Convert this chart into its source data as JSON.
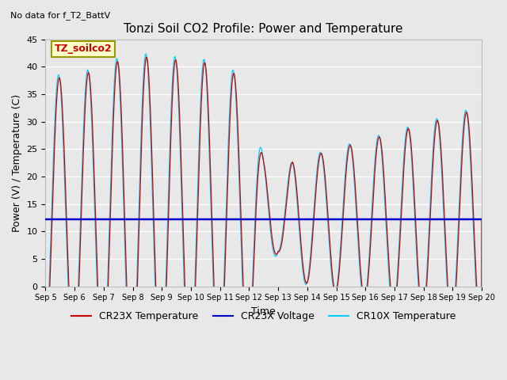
{
  "title": "Tonzi Soil CO2 Profile: Power and Temperature",
  "subtitle": "No data for f_T2_BattV",
  "ylabel": "Power (V) / Temperature (C)",
  "xlabel": "Time",
  "ylim": [
    0,
    45
  ],
  "yticks": [
    0,
    5,
    10,
    15,
    20,
    25,
    30,
    35,
    40,
    45
  ],
  "xtick_labels": [
    "Sep 5",
    "Sep 6",
    "Sep 7",
    "Sep 8",
    "Sep 9",
    "Sep 10",
    "Sep 11",
    "Sep 12",
    "Sep 13",
    "Sep 14",
    "Sep 15",
    "Sep 16",
    "Sep 17",
    "Sep 18",
    "Sep 19",
    "Sep 20"
  ],
  "cr23x_color": "#cc0000",
  "cr10x_color": "#00ccff",
  "voltage_color": "#0000cc",
  "bg_color": "#e8e8e8",
  "fig_color": "#e8e8e8",
  "legend_label_box": "TZ_soilco2",
  "legend_box_color": "#ffffcc",
  "legend_box_edge": "#999900",
  "grid_color": "#ffffff",
  "voltage_value": 12.2,
  "title_fontsize": 11,
  "subtitle_fontsize": 8,
  "ylabel_fontsize": 9,
  "xlabel_fontsize": 9,
  "tick_fontsize": 8,
  "legend_fontsize": 9
}
